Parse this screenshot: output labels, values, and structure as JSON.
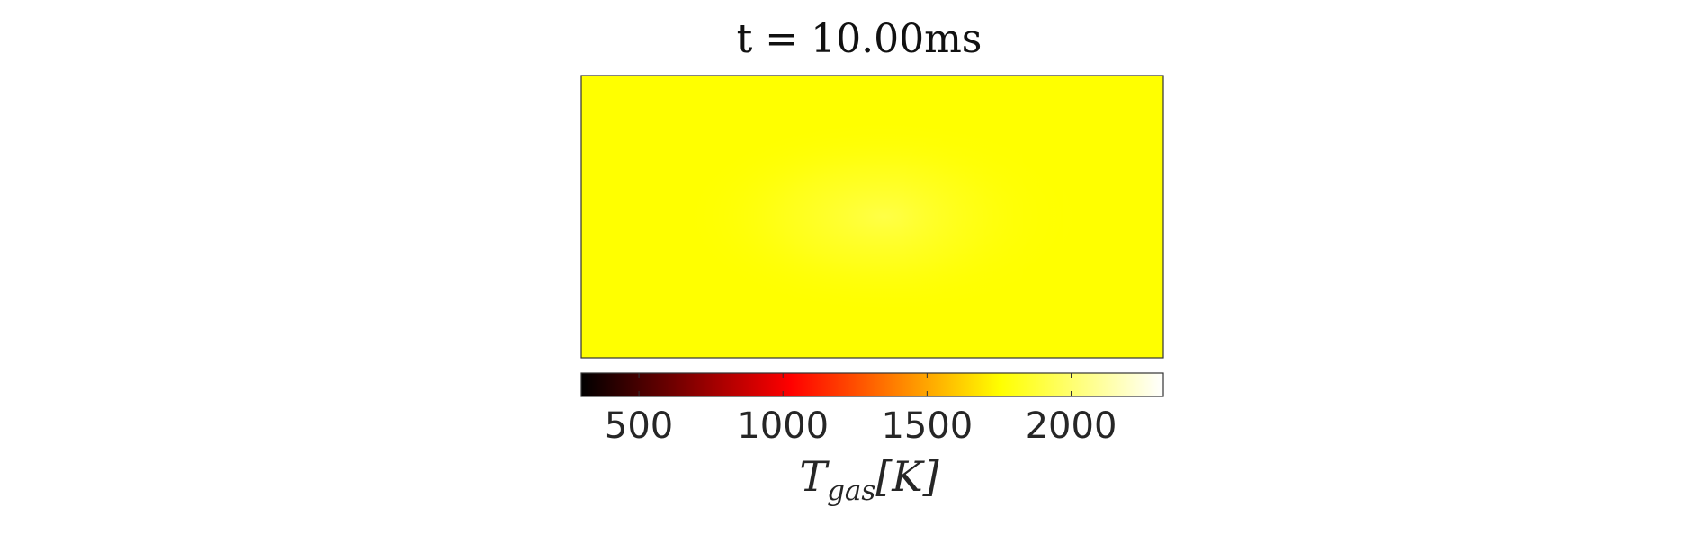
{
  "chart_data": {
    "type": "heatmap",
    "title": "t = 10.00ms",
    "colorbar": {
      "label": "T",
      "label_subscript": "gas",
      "label_unit": "[K]",
      "colormap": "hot",
      "limits": [
        300,
        2320
      ],
      "ticks": [
        500,
        1000,
        1500,
        2000
      ],
      "tick_labels": [
        "500",
        "1000",
        "1500",
        "2000"
      ],
      "colormap_stops": [
        "#000000",
        "#ff0000",
        "#ffff00",
        "#ffffff"
      ]
    },
    "field": {
      "base_value": 1880,
      "base_color": "#ffff00",
      "features": [
        {
          "type": "hot-spot",
          "cx": 0.52,
          "cy": 0.5,
          "value": 1950
        },
        {
          "type": "cool-band",
          "cx": 0.8,
          "value": 1870
        }
      ]
    },
    "grid": false,
    "legend": "none"
  }
}
